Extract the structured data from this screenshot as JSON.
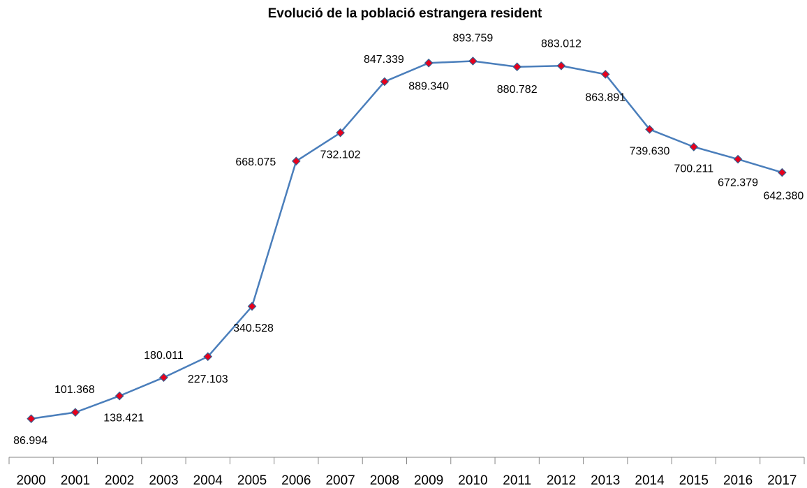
{
  "chart_data": {
    "type": "line",
    "title": "Evolució de la població estrangera resident",
    "categories": [
      "2000",
      "2001",
      "2002",
      "2003",
      "2004",
      "2005",
      "2006",
      "2007",
      "2008",
      "2009",
      "2010",
      "2011",
      "2012",
      "2013",
      "2014",
      "2015",
      "2016",
      "2017"
    ],
    "series": [
      {
        "color": "#4a7ebb",
        "marker_color": "#e8001c",
        "values": [
          86994,
          101368,
          138421,
          180011,
          227103,
          340528,
          668075,
          732102,
          847339,
          889340,
          893759,
          880782,
          883012,
          863891,
          739630,
          700211,
          672379,
          642380
        ],
        "value_labels": [
          "86.994",
          "101.368",
          "138.421",
          "180.011",
          "227.103",
          "340.528",
          "668.075",
          "732.102",
          "847.339",
          "889.340",
          "893.759",
          "880.782",
          "883.012",
          "863.891",
          "739.630",
          "700.211",
          "672.379",
          "642.380"
        ]
      }
    ],
    "ylim": [
      0,
      1000000
    ]
  }
}
